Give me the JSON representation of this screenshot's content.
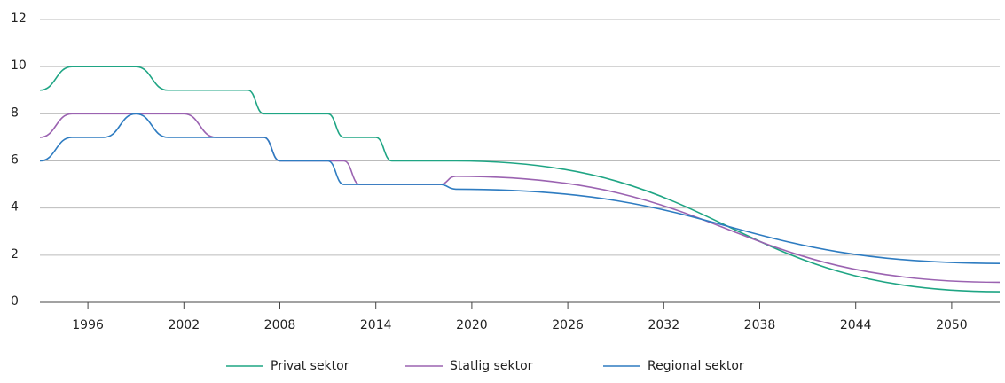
{
  "chart_data": {
    "type": "line",
    "xlim": [
      1993,
      2053
    ],
    "xticks": [
      1996,
      2002,
      2008,
      2014,
      2020,
      2026,
      2032,
      2038,
      2044,
      2050
    ],
    "ylim": [
      0,
      12
    ],
    "yticks": [
      0,
      2,
      4,
      6,
      8,
      10,
      12
    ],
    "grid": true,
    "legend": "bottom",
    "series": [
      {
        "name": "Privat sektor",
        "color": "#1fa584",
        "x": [
          1993,
          1995,
          1999,
          2001,
          2006,
          2007,
          2011,
          2012,
          2014,
          2015,
          2019,
          2053
        ],
        "values": [
          9,
          10,
          10,
          9,
          9,
          8,
          8,
          7,
          7,
          6,
          6,
          0.45
        ]
      },
      {
        "name": "Statlig sektor",
        "color": "#9b63b1",
        "x": [
          1993,
          1995,
          2002,
          2004,
          2007,
          2008,
          2012,
          2013,
          2018,
          2019,
          2053
        ],
        "values": [
          7,
          8,
          8,
          7,
          7,
          6,
          6,
          5,
          5,
          5.35,
          0.85
        ]
      },
      {
        "name": "Regional sektor",
        "color": "#2e7cc1",
        "x": [
          1993,
          1995,
          1997,
          1999,
          2001,
          2007,
          2008,
          2011,
          2012,
          2018,
          2019,
          2053
        ],
        "values": [
          6,
          7,
          7,
          8,
          7,
          7,
          6,
          6,
          5,
          5,
          4.8,
          1.65
        ]
      }
    ]
  }
}
